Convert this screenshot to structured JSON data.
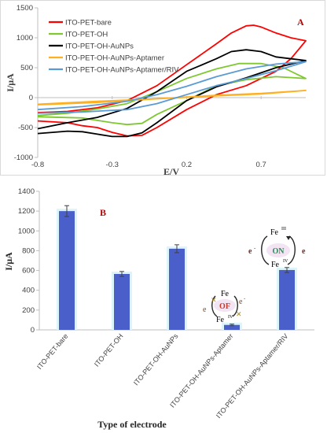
{
  "chart_data": [
    {
      "type": "line",
      "panel_label": "A",
      "xlabel": "E/V",
      "ylabel": "I/μA",
      "xlim": [
        -0.8,
        1.0
      ],
      "ylim": [
        -1000,
        1500
      ],
      "x_ticks": [
        "-0.8",
        "-0.3",
        "0.2",
        "0.7"
      ],
      "x_tick_values": [
        -0.8,
        -0.3,
        0.2,
        0.7
      ],
      "y_ticks": [
        "1500",
        "1000",
        "500",
        "0",
        "-500",
        "-1000"
      ],
      "y_tick_values": [
        1500,
        1000,
        500,
        0,
        -500,
        -1000
      ],
      "grid": false,
      "legend_position": "top-left",
      "series": [
        {
          "name": "ITO-PET-bare",
          "color": "#ff0000",
          "x": [
            -0.8,
            -0.6,
            -0.4,
            -0.2,
            0.0,
            0.2,
            0.4,
            0.5,
            0.6,
            0.65,
            0.7,
            0.8,
            0.9,
            1.0,
            0.9,
            0.8,
            0.6,
            0.4,
            0.2,
            0.0,
            -0.1,
            -0.2,
            -0.3,
            -0.4,
            -0.5,
            -0.6,
            -0.8
          ],
          "y": [
            -250,
            -230,
            -170,
            -50,
            200,
            550,
            900,
            1080,
            1200,
            1210,
            1180,
            1080,
            1000,
            950,
            650,
            440,
            200,
            50,
            -200,
            -500,
            -630,
            -640,
            -580,
            -500,
            -470,
            -420,
            -390
          ]
        },
        {
          "name": "ITO-PET-OH",
          "color": "#7fc832",
          "x": [
            -0.8,
            -0.6,
            -0.4,
            -0.2,
            0.0,
            0.2,
            0.4,
            0.55,
            0.7,
            0.85,
            1.0,
            0.8,
            0.6,
            0.4,
            0.2,
            0.0,
            -0.1,
            -0.2,
            -0.3,
            -0.5,
            -0.8
          ],
          "y": [
            -300,
            -260,
            -190,
            -100,
            100,
            320,
            480,
            570,
            570,
            500,
            320,
            350,
            300,
            200,
            -50,
            -280,
            -430,
            -450,
            -420,
            -340,
            -320
          ]
        },
        {
          "name": "ITO-PET-OH-AuNPs",
          "color": "#000000",
          "x": [
            -0.8,
            -0.6,
            -0.4,
            -0.2,
            0.0,
            0.2,
            0.4,
            0.5,
            0.6,
            0.7,
            0.8,
            1.0,
            0.8,
            0.6,
            0.4,
            0.2,
            0.0,
            -0.1,
            -0.2,
            -0.3,
            -0.4,
            -0.5,
            -0.6,
            -0.8
          ],
          "y": [
            -520,
            -420,
            -330,
            -180,
            100,
            440,
            650,
            770,
            800,
            770,
            680,
            620,
            500,
            330,
            180,
            -50,
            -420,
            -590,
            -650,
            -650,
            -610,
            -570,
            -560,
            -600
          ]
        },
        {
          "name": "ITO-PET-OH-AuNPs-Aptamer",
          "color": "#ffb020",
          "x": [
            -0.8,
            -0.4,
            0.0,
            0.4,
            0.7,
            1.0,
            0.7,
            0.4,
            0.0,
            -0.4,
            -0.8
          ],
          "y": [
            -120,
            -80,
            -20,
            40,
            70,
            120,
            60,
            30,
            -20,
            -60,
            -110
          ]
        },
        {
          "name": "ITO-PET-OH-AuNPs-Aptamer/RIV",
          "color": "#5b9bd5",
          "x": [
            -0.8,
            -0.5,
            -0.2,
            0.0,
            0.2,
            0.4,
            0.6,
            0.8,
            1.0,
            0.8,
            0.6,
            0.4,
            0.2,
            0.0,
            -0.2,
            -0.5,
            -0.8
          ],
          "y": [
            -200,
            -150,
            -60,
            50,
            190,
            350,
            480,
            560,
            600,
            450,
            320,
            200,
            50,
            -100,
            -200,
            -240,
            -260
          ]
        }
      ]
    },
    {
      "type": "bar",
      "panel_label": "B",
      "xlabel": "Type of electrode",
      "ylabel": "I/μA",
      "ylim": [
        0,
        1400
      ],
      "y_ticks": [
        "1400",
        "1200",
        "1000",
        "800",
        "600",
        "400",
        "200",
        "0"
      ],
      "y_tick_values": [
        1400,
        1200,
        1000,
        800,
        600,
        400,
        200,
        0
      ],
      "grid": false,
      "categories": [
        "ITO-PET-bare",
        "ITO-PET-OH",
        "ITO-PET-OH-AuNPs",
        "ITO-PET-OH-AuNPs-Aptamer",
        "ITO-PET-OH-AuNPs-Aptamer/RIV"
      ],
      "values": [
        1200,
        565,
        820,
        50,
        605
      ],
      "error": [
        55,
        25,
        40,
        8,
        25
      ],
      "bar_color": "#4a5fc9",
      "halo_color": "#dcf5fb",
      "insets": {
        "off": {
          "top": "Fe",
          "switch": "OF",
          "bottom": "Fe",
          "bottom_sup": "IV",
          "electron": "e",
          "electron_sup": "-"
        },
        "on": {
          "top": "Fe",
          "top_sup": "III",
          "switch": "ON",
          "bottom": "Fe",
          "bottom_sup": "IV",
          "electron": "e",
          "electron_sup": "-"
        }
      }
    }
  ]
}
